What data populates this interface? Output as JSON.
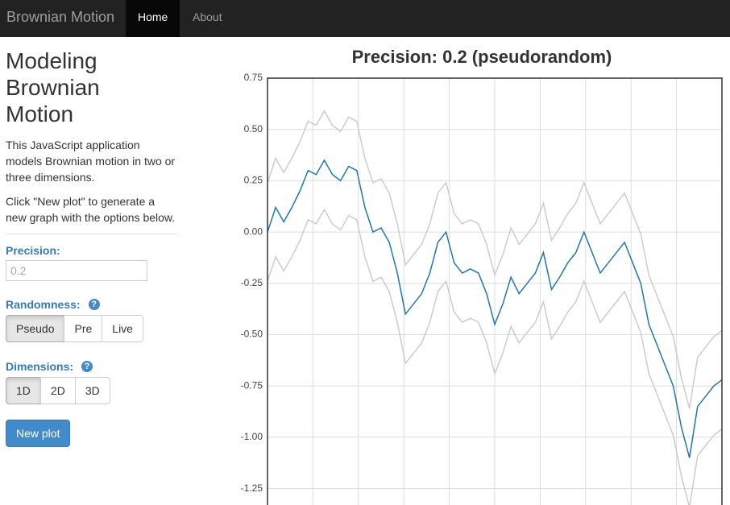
{
  "navbar": {
    "brand": "Brownian Motion",
    "items": [
      "Home",
      "About"
    ]
  },
  "sidebar": {
    "heading": "Modeling Brownian Motion",
    "paragraphs": [
      "This JavaScript application models Brownian motion in two or three dimensions.",
      "Click \"New plot\" to generate a new graph with the options below."
    ],
    "precision": {
      "label": "Precision:",
      "placeholder": "0.2"
    },
    "randomness": {
      "label": "Randomness:",
      "help": "?",
      "options": [
        "Pseudo",
        "Pre",
        "Live"
      ]
    },
    "dimensions": {
      "label": "Dimensions:",
      "help": "?",
      "options": [
        "1D",
        "2D",
        "3D"
      ]
    },
    "button": "New plot"
  },
  "chart_data": {
    "type": "line",
    "title": "Precision: 0.2 (pseudorandom)",
    "ylim": [
      -1.33,
      0.75
    ],
    "yticks": [
      0.75,
      {
        "value": 0.5,
        "label": "0.50"
      },
      0.25,
      {
        "value": 0,
        "label": "0.00"
      },
      -0.25,
      {
        "value": -0.5,
        "label": "-0.50"
      },
      -0.75,
      {
        "value": -1,
        "label": "-1.00"
      },
      -1.25
    ],
    "grid": true,
    "series": [
      {
        "color": "#cccccc",
        "values": [
          0.24,
          0.36,
          0.29,
          0.36,
          0.44,
          0.54,
          0.52,
          0.59,
          0.52,
          0.49,
          0.56,
          0.54,
          0.36,
          0.24,
          0.26,
          0.19,
          0.04,
          -0.16,
          -0.11,
          -0.06,
          0.04,
          0.19,
          0.24,
          0.09,
          0.04,
          0.06,
          0.04,
          -0.06,
          -0.21,
          -0.11,
          0.02,
          -0.06,
          -0.01,
          0.04,
          0.14,
          -0.04,
          0.02,
          0.09,
          0.14,
          0.24,
          0.14,
          0.04,
          0.09,
          0.14,
          0.19,
          0.09,
          -0.01,
          -0.21,
          -0.31,
          -0.41,
          -0.51,
          -0.71,
          -0.86,
          -0.61,
          -0.56,
          -0.51,
          -0.48
        ]
      },
      {
        "color": "#cccccc",
        "values": [
          -0.24,
          -0.12,
          -0.19,
          -0.12,
          -0.04,
          0.06,
          0.04,
          0.11,
          0.04,
          0.01,
          0.08,
          0.06,
          -0.12,
          -0.24,
          -0.22,
          -0.29,
          -0.44,
          -0.64,
          -0.59,
          -0.54,
          -0.44,
          -0.29,
          -0.24,
          -0.39,
          -0.44,
          -0.42,
          -0.44,
          -0.54,
          -0.69,
          -0.59,
          -0.46,
          -0.54,
          -0.49,
          -0.44,
          -0.34,
          -0.52,
          -0.46,
          -0.39,
          -0.34,
          -0.24,
          -0.34,
          -0.44,
          -0.39,
          -0.34,
          -0.29,
          -0.39,
          -0.49,
          -0.69,
          -0.79,
          -0.89,
          -0.99,
          -1.19,
          -1.34,
          -1.09,
          -1.04,
          -0.99,
          -0.96
        ]
      },
      {
        "color": "#1f77b4",
        "values": [
          0.0,
          0.12,
          0.05,
          0.12,
          0.2,
          0.3,
          0.28,
          0.35,
          0.28,
          0.25,
          0.32,
          0.3,
          0.12,
          0.0,
          0.02,
          -0.05,
          -0.2,
          -0.4,
          -0.35,
          -0.3,
          -0.2,
          -0.05,
          0.0,
          -0.15,
          -0.2,
          -0.18,
          -0.2,
          -0.3,
          -0.45,
          -0.35,
          -0.22,
          -0.3,
          -0.25,
          -0.2,
          -0.1,
          -0.28,
          -0.22,
          -0.15,
          -0.1,
          0.0,
          -0.1,
          -0.2,
          -0.15,
          -0.1,
          -0.05,
          -0.15,
          -0.25,
          -0.45,
          -0.55,
          -0.65,
          -0.75,
          -0.95,
          -1.1,
          -0.85,
          -0.8,
          -0.75,
          -0.72
        ]
      }
    ]
  }
}
